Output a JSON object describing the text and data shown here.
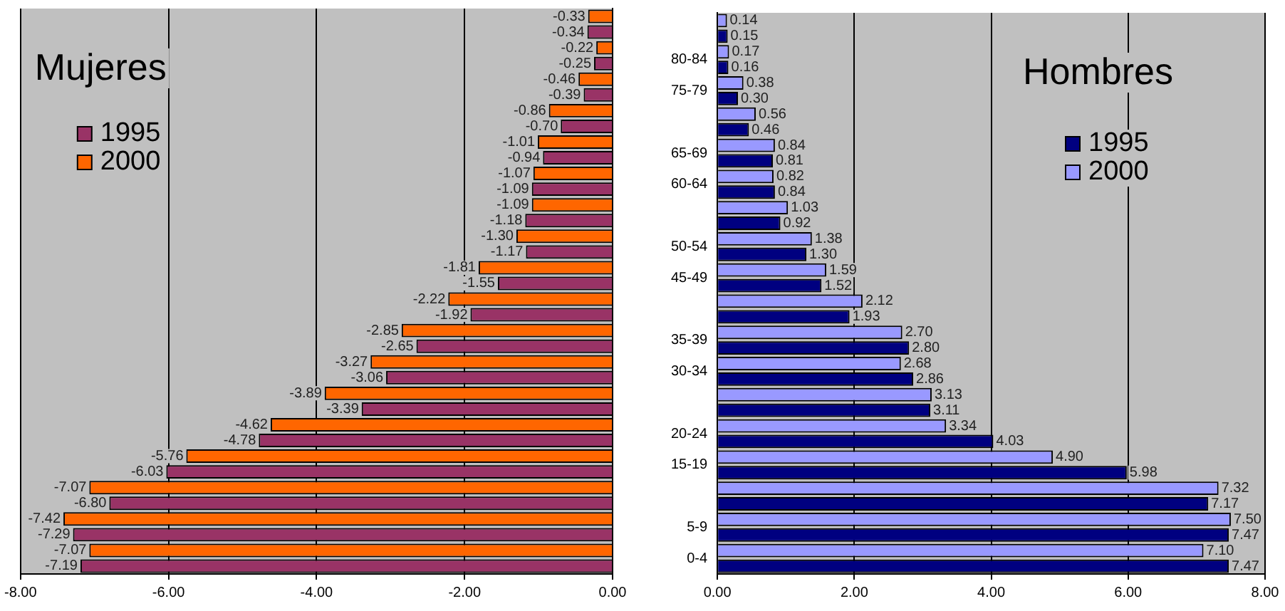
{
  "chart_data": [
    {
      "type": "bar",
      "orientation": "horizontal",
      "title": "Mujeres",
      "categories": [
        null,
        null,
        null,
        null,
        null,
        null,
        null,
        null,
        null,
        null,
        null,
        null,
        null,
        null,
        null,
        null,
        null,
        null
      ],
      "series": [
        {
          "name": "1995",
          "color": "#993366",
          "values": [
            -0.34,
            -0.25,
            -0.39,
            -0.7,
            -0.94,
            -1.09,
            -1.18,
            -1.17,
            -1.55,
            -1.92,
            -2.65,
            -3.06,
            -3.39,
            -4.78,
            -6.03,
            -6.8,
            -7.29,
            -7.19
          ],
          "value_labels": [
            "-0.34",
            "-0.25",
            "-0.39",
            "-0.70",
            "-0.94",
            "-1.09",
            "-1.18",
            "-1.17",
            "-1.55",
            "-1.92",
            "-2.65",
            "-3.06",
            "-3.39",
            "-4.78",
            "-6.03",
            "-6.80",
            "-7.29",
            "-7.19"
          ]
        },
        {
          "name": "2000",
          "color": "#ff6600",
          "values": [
            -0.33,
            -0.22,
            -0.46,
            -0.86,
            -1.01,
            -1.07,
            -1.09,
            -1.3,
            -1.81,
            -2.22,
            -2.85,
            -3.27,
            -3.89,
            -4.62,
            -5.76,
            -7.07,
            -7.42,
            -7.07
          ],
          "value_labels": [
            "-0.33",
            "-0.22",
            "-0.46",
            "-0.86",
            "-1.01",
            "-1.07",
            "-1.09",
            "-1.30",
            "-1.81",
            "-2.22",
            "-2.85",
            "-3.27",
            "-3.89",
            "-4.62",
            "-5.76",
            "-7.07",
            "-7.42",
            "-7.07"
          ]
        }
      ],
      "xlim": [
        -8,
        0
      ],
      "xticks": [
        {
          "value": -8,
          "label": "-8.00"
        },
        {
          "value": -6,
          "label": "-6.00"
        },
        {
          "value": -4,
          "label": "-4.00"
        },
        {
          "value": -2,
          "label": "-2.00"
        },
        {
          "value": 0,
          "label": "0.00"
        }
      ],
      "tick_labels": "x",
      "grid": "x",
      "legend": "top left"
    },
    {
      "type": "bar",
      "orientation": "horizontal",
      "title": "Hombres",
      "categories": [
        null,
        "80-84",
        "75-79",
        null,
        "65-69",
        "60-64",
        null,
        "50-54",
        "45-49",
        null,
        "35-39",
        "30-34",
        null,
        "20-24",
        "15-19",
        null,
        "5-9",
        "0-4"
      ],
      "series": [
        {
          "name": "1995",
          "color": "#000080",
          "values": [
            0.15,
            0.16,
            0.3,
            0.46,
            0.81,
            0.84,
            0.92,
            1.3,
            1.52,
            1.93,
            2.8,
            2.86,
            3.11,
            4.03,
            5.98,
            7.17,
            7.47,
            7.47
          ],
          "value_labels": [
            "0.15",
            "0.16",
            "0.30",
            "0.46",
            "0.81",
            "0.84",
            "0.92",
            "1.30",
            "1.52",
            "1.93",
            "2.80",
            "2.86",
            "3.11",
            "4.03",
            "5.98",
            "7.17",
            "7.47",
            "7.47"
          ]
        },
        {
          "name": "2000",
          "color": "#9999ff",
          "values": [
            0.14,
            0.17,
            0.38,
            0.56,
            0.84,
            0.82,
            1.03,
            1.38,
            1.59,
            2.12,
            2.7,
            2.68,
            3.13,
            3.34,
            4.9,
            7.32,
            7.5,
            7.1
          ],
          "value_labels": [
            "0.14",
            "0.17",
            "0.38",
            "0.56",
            "0.84",
            "0.82",
            "1.03",
            "1.38",
            "1.59",
            "2.12",
            "2.70",
            "2.68",
            "3.13",
            "3.34",
            "4.90",
            "7.32",
            "7.50",
            "7.10"
          ]
        }
      ],
      "xlim": [
        0,
        8
      ],
      "xticks": [
        {
          "value": 0,
          "label": "0.00"
        },
        {
          "value": 2,
          "label": "2.00"
        },
        {
          "value": 4,
          "label": "4.00"
        },
        {
          "value": 6,
          "label": "6.00"
        },
        {
          "value": 8,
          "label": "8.00"
        }
      ],
      "grid": "x",
      "legend": "top right"
    }
  ]
}
